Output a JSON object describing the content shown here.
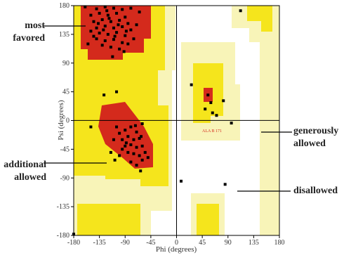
{
  "chart_data": {
    "type": "scatter",
    "xlabel": "Phi (degrees)",
    "ylabel": "Psi (degrees)",
    "xlim": [
      -180,
      180
    ],
    "ylim": [
      -180,
      180
    ],
    "xticks": [
      -180,
      -135,
      -90,
      -45,
      0,
      45,
      90,
      135,
      180
    ],
    "yticks": [
      -180,
      -135,
      -90,
      -45,
      0,
      45,
      90,
      135,
      180
    ],
    "color": "#000000",
    "x": [
      -140,
      -125,
      -110,
      -95,
      -80,
      -150,
      -135,
      -120,
      -105,
      -90,
      -145,
      -130,
      -115,
      -100,
      -85,
      -140,
      -125,
      -110,
      -95,
      -80,
      -150,
      -135,
      -120,
      -105,
      -90,
      -140,
      -125,
      -110,
      -95,
      -130,
      -115,
      -100,
      -85,
      -145,
      -128,
      -118,
      -102,
      -88,
      -75,
      -137,
      -122,
      -108,
      -92,
      -155,
      -112,
      -70,
      -65,
      -160,
      -100,
      -90,
      -80,
      -70,
      -95,
      -85,
      -75,
      -65,
      -90,
      -80,
      -70,
      -60,
      -85,
      -75,
      -65,
      -55,
      -95,
      -105,
      -110,
      -100,
      -80,
      -70,
      -60,
      -50,
      -88,
      -72,
      -62,
      -115,
      -108,
      -180,
      -127,
      -105,
      -63,
      55,
      60,
      50,
      63,
      70,
      82,
      26,
      112,
      8,
      85,
      96,
      -60,
      -150
    ],
    "values": [
      175,
      178,
      176,
      174,
      176,
      165,
      168,
      165,
      168,
      162,
      155,
      158,
      155,
      157,
      152,
      145,
      148,
      145,
      147,
      142,
      140,
      137,
      135,
      138,
      133,
      128,
      125,
      127,
      122,
      118,
      115,
      112,
      120,
      132,
      142,
      160,
      150,
      140,
      128,
      152,
      172,
      132,
      108,
      120,
      100,
      150,
      170,
      178,
      -20,
      -15,
      -10,
      -18,
      -30,
      -25,
      -30,
      -28,
      -40,
      -38,
      -42,
      -40,
      -50,
      -52,
      -55,
      -50,
      -45,
      -10,
      -30,
      -55,
      -65,
      -70,
      -62,
      -58,
      -35,
      -8,
      -25,
      -50,
      -62,
      -178,
      40,
      45,
      -79,
      40,
      28,
      18,
      12,
      8,
      31,
      56,
      172,
      -95,
      -100,
      -4,
      -5,
      -10
    ],
    "annotations": [
      {
        "text": "most favored"
      },
      {
        "text": "additional allowed"
      },
      {
        "text": "generously allowed"
      },
      {
        "text": "disallowed"
      },
      {
        "text": "ALA B 171"
      }
    ]
  }
}
